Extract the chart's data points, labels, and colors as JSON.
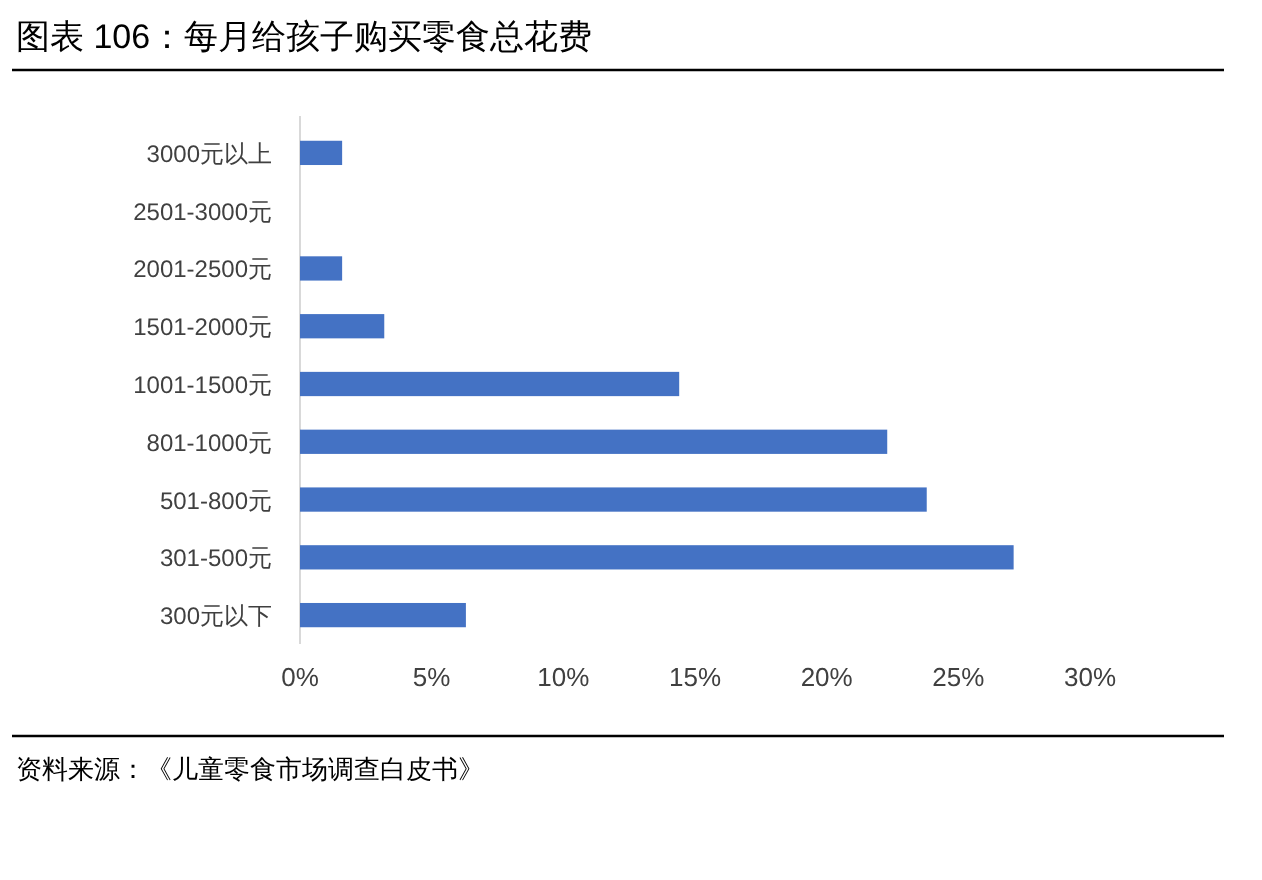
{
  "chart_data": {
    "type": "bar",
    "orientation": "horizontal",
    "title": "图表 106：每月给孩子购买零食总花费",
    "categories": [
      "3000元以上",
      "2501-3000元",
      "2001-2500元",
      "1501-2000元",
      "1001-1500元",
      "801-1000元",
      "501-800元",
      "301-500元",
      "300元以下"
    ],
    "values": [
      1.6,
      0,
      1.6,
      3.2,
      14.4,
      22.3,
      23.8,
      27.1,
      6.3
    ],
    "color": "#4472c4",
    "xlim": [
      0,
      30
    ],
    "xticks": [
      {
        "value": 0,
        "label": "0%"
      },
      {
        "value": 5,
        "label": "5%"
      },
      {
        "value": 10,
        "label": "10%"
      },
      {
        "value": 15,
        "label": "15%"
      },
      {
        "value": 20,
        "label": "20%"
      },
      {
        "value": 25,
        "label": "25%"
      },
      {
        "value": 30,
        "label": "30%"
      }
    ],
    "annotations": [
      "资料来源：《儿童零食市场调查白皮书》"
    ]
  }
}
